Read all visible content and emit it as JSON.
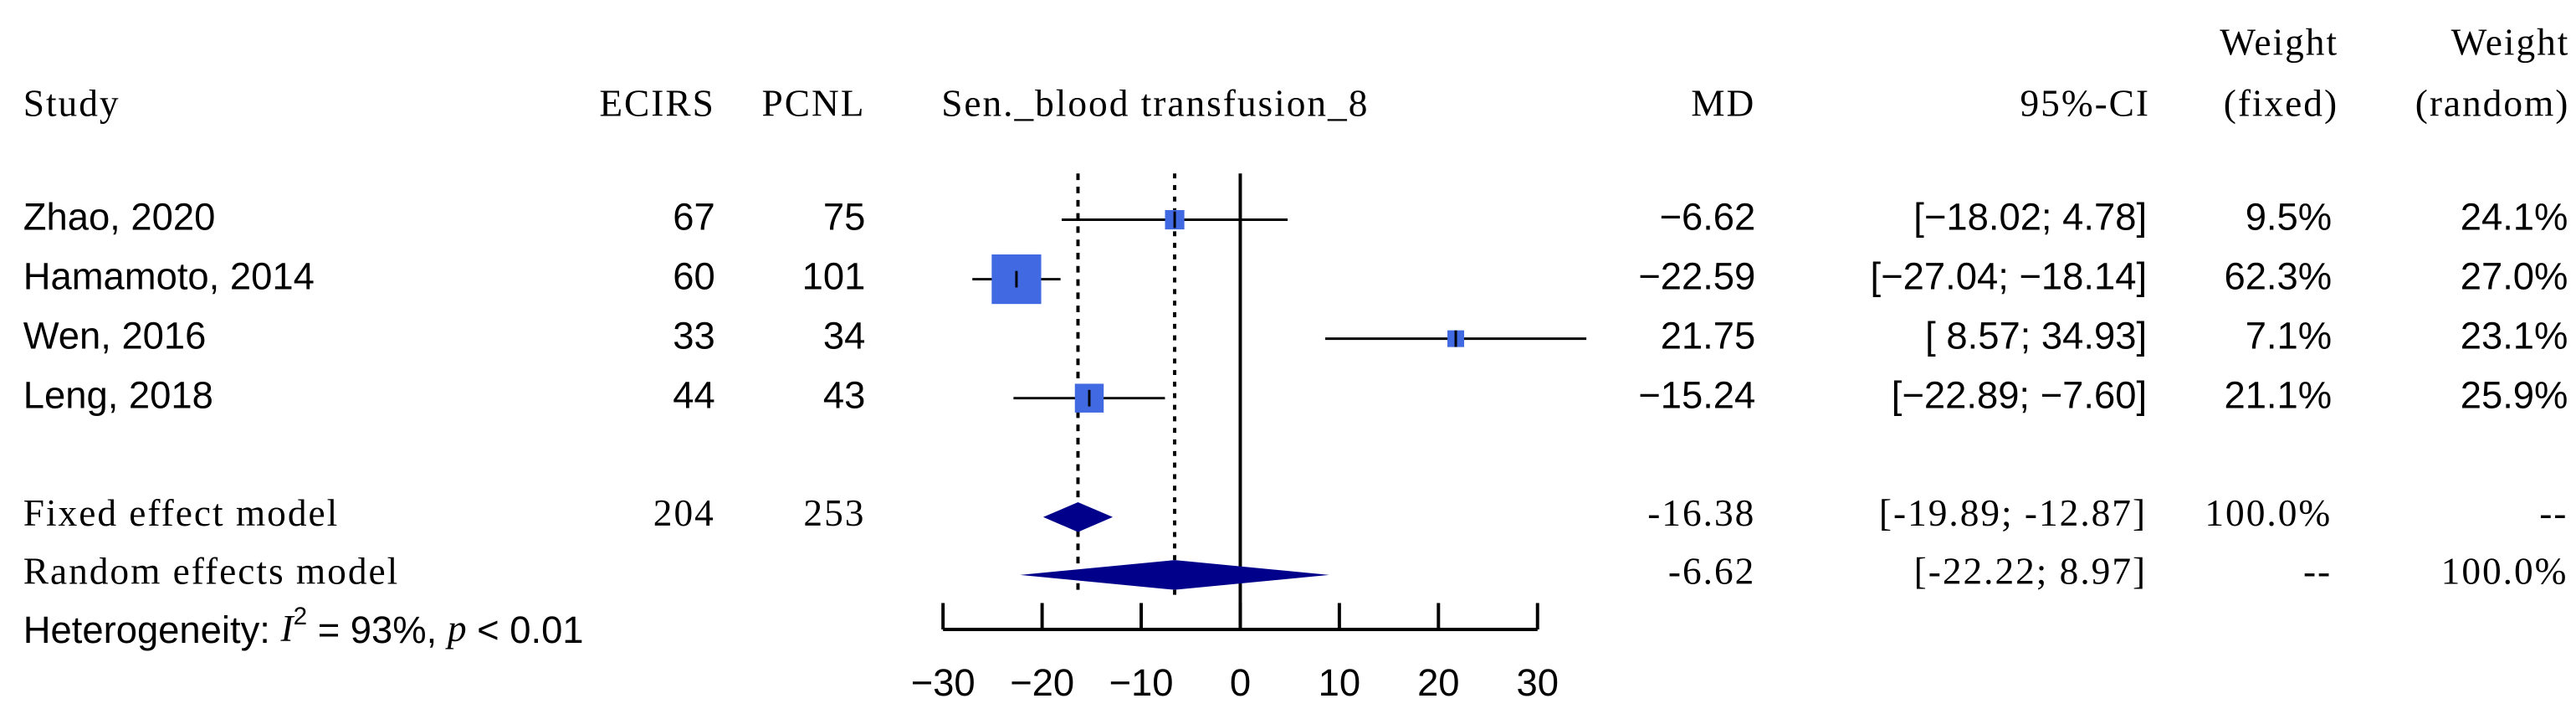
{
  "chart_data": {
    "type": "forest",
    "title": "Sen._blood transfusion_8",
    "headers": {
      "study": "Study",
      "n_e": "ECIRS",
      "n_c": "PCNL",
      "md": "MD",
      "ci": "95%-CI",
      "weight_fixed": [
        "Weight",
        "(fixed)"
      ],
      "weight_random": [
        "Weight",
        "(random)"
      ]
    },
    "studies": [
      {
        "name": "Zhao, 2020",
        "n_e": 67,
        "n_c": 75,
        "md": -6.62,
        "md_label": "−6.62",
        "lower": -18.02,
        "upper": 4.78,
        "ci_label": "[−18.02;  4.78]",
        "weight_fixed": 9.5,
        "weight_fixed_label": "9.5%",
        "weight_random": 24.1,
        "weight_random_label": "24.1%"
      },
      {
        "name": "Hamamoto, 2014",
        "n_e": 60,
        "n_c": 101,
        "md": -22.59,
        "md_label": "−22.59",
        "lower": -27.04,
        "upper": -18.14,
        "ci_label": "[−27.04; −18.14]",
        "weight_fixed": 62.3,
        "weight_fixed_label": "62.3%",
        "weight_random": 27.0,
        "weight_random_label": "27.0%"
      },
      {
        "name": "Wen, 2016",
        "n_e": 33,
        "n_c": 34,
        "md": 21.75,
        "md_label": "21.75",
        "lower": 8.57,
        "upper": 34.93,
        "ci_label": "[ 8.57; 34.93]",
        "weight_fixed": 7.1,
        "weight_fixed_label": "7.1%",
        "weight_random": 23.1,
        "weight_random_label": "23.1%"
      },
      {
        "name": "Leng, 2018",
        "n_e": 44,
        "n_c": 43,
        "md": -15.24,
        "md_label": "−15.24",
        "lower": -22.89,
        "upper": -7.6,
        "ci_label": "[−22.89;  −7.60]",
        "weight_fixed": 21.1,
        "weight_fixed_label": "21.1%",
        "weight_random": 25.9,
        "weight_random_label": "25.9%"
      }
    ],
    "models": [
      {
        "name": "Fixed effect model",
        "n_e": 204,
        "n_c": 253,
        "md": -16.38,
        "md_label": "-16.38",
        "lower": -19.89,
        "upper": -12.87,
        "ci_label": "[-19.89; -12.87]",
        "weight_fixed": 100.0,
        "weight_fixed_label": "100.0%",
        "weight_random": null,
        "weight_random_label": "--"
      },
      {
        "name": "Random effects model",
        "md": -6.62,
        "md_label": "-6.62",
        "lower": -22.22,
        "upper": 8.97,
        "ci_label": "[-22.22;  8.97]",
        "weight_fixed": null,
        "weight_fixed_label": "--",
        "weight_random": 100.0,
        "weight_random_label": "100.0%"
      }
    ],
    "heterogeneity": [
      "Heterogeneity: ",
      "I",
      "2",
      " = 93%, ",
      "p",
      " < 0.01"
    ],
    "xlim": [
      -30,
      30
    ],
    "xticks": [
      {
        "value": -30,
        "label": "−30"
      },
      {
        "value": -20,
        "label": "−20"
      },
      {
        "value": -10,
        "label": "−10"
      },
      0,
      10,
      20,
      30
    ],
    "study_color": "#4169e1",
    "model_color": "#00008b"
  }
}
